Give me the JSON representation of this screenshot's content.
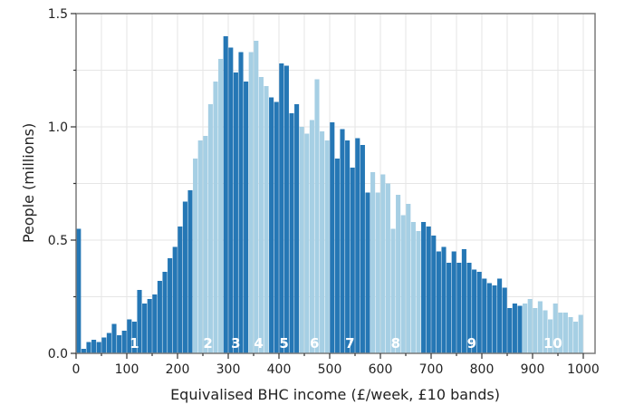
{
  "chart_data": {
    "type": "bar",
    "xlabel": "Equivalised BHC income (£/week, £10 bands)",
    "ylabel": "People (millions)",
    "xlim": [
      0,
      1000
    ],
    "ylim": [
      0,
      1.5
    ],
    "x_ticks": [
      "0",
      "100",
      "200",
      "300",
      "400",
      "500",
      "600",
      "700",
      "800",
      "900",
      "1000"
    ],
    "y_ticks": [
      "0.0",
      "0.5",
      "1.0",
      "1.5"
    ],
    "grid": true,
    "band_width": 10,
    "bins_start": [
      0,
      10,
      20,
      30,
      40,
      50,
      60,
      70,
      80,
      90,
      100,
      110,
      120,
      130,
      140,
      150,
      160,
      170,
      180,
      190,
      200,
      210,
      220,
      230,
      240,
      250,
      260,
      270,
      280,
      290,
      300,
      310,
      320,
      330,
      340,
      350,
      360,
      370,
      380,
      390,
      400,
      410,
      420,
      430,
      440,
      450,
      460,
      470,
      480,
      490,
      500,
      510,
      520,
      530,
      540,
      550,
      560,
      570,
      580,
      590,
      600,
      610,
      620,
      630,
      640,
      650,
      660,
      670,
      680,
      690,
      700,
      710,
      720,
      730,
      740,
      750,
      760,
      770,
      780,
      790,
      800,
      810,
      820,
      830,
      840,
      850,
      860,
      870,
      880,
      890,
      900,
      910,
      920,
      930,
      940,
      950,
      960,
      970,
      980,
      990
    ],
    "values": [
      0.55,
      0.02,
      0.05,
      0.06,
      0.05,
      0.07,
      0.09,
      0.13,
      0.08,
      0.1,
      0.15,
      0.14,
      0.28,
      0.22,
      0.24,
      0.26,
      0.32,
      0.36,
      0.42,
      0.47,
      0.56,
      0.67,
      0.72,
      0.86,
      0.94,
      0.96,
      1.1,
      1.2,
      1.3,
      1.4,
      1.35,
      1.24,
      1.33,
      1.2,
      1.33,
      1.38,
      1.22,
      1.18,
      1.13,
      1.11,
      1.28,
      1.27,
      1.06,
      1.1,
      1.0,
      0.97,
      1.03,
      1.21,
      0.98,
      0.94,
      1.02,
      0.86,
      0.99,
      0.94,
      0.82,
      0.95,
      0.92,
      0.71,
      0.8,
      0.71,
      0.79,
      0.75,
      0.55,
      0.7,
      0.61,
      0.66,
      0.58,
      0.54,
      0.58,
      0.56,
      0.52,
      0.45,
      0.47,
      0.4,
      0.45,
      0.4,
      0.46,
      0.4,
      0.37,
      0.36,
      0.33,
      0.31,
      0.3,
      0.33,
      0.29,
      0.2,
      0.22,
      0.21,
      0.22,
      0.24,
      0.2,
      0.23,
      0.19,
      0.15,
      0.22,
      0.18,
      0.18,
      0.16,
      0.14,
      0.17
    ],
    "deciles": [
      {
        "label": "1",
        "x_start": 0,
        "x_end": 230,
        "label_x": 115
      },
      {
        "label": "2",
        "x_start": 230,
        "x_end": 290,
        "label_x": 260
      },
      {
        "label": "3",
        "x_start": 290,
        "x_end": 340,
        "label_x": 315
      },
      {
        "label": "4",
        "x_start": 340,
        "x_end": 380,
        "label_x": 360
      },
      {
        "label": "5",
        "x_start": 380,
        "x_end": 440,
        "label_x": 410
      },
      {
        "label": "6",
        "x_start": 440,
        "x_end": 500,
        "label_x": 470
      },
      {
        "label": "7",
        "x_start": 500,
        "x_end": 580,
        "label_x": 540
      },
      {
        "label": "8",
        "x_start": 580,
        "x_end": 680,
        "label_x": 630
      },
      {
        "label": "9",
        "x_start": 680,
        "x_end": 880,
        "label_x": 780
      },
      {
        "label": "10",
        "x_start": 880,
        "x_end": 1000,
        "label_x": 940
      }
    ],
    "colors": {
      "dark": "#2577b5",
      "light": "#a6cfe4",
      "grid": "#e6e6e6",
      "frame": "#7a7a7a"
    }
  }
}
